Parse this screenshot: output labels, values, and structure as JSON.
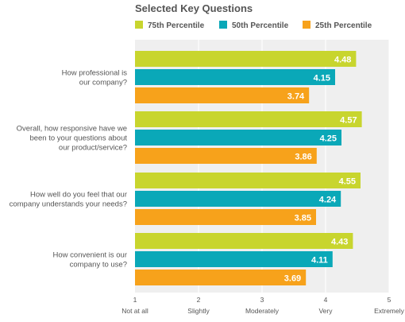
{
  "chart_data": {
    "type": "bar",
    "orientation": "horizontal",
    "title": "Selected Key Questions",
    "categories": [
      "How professional is our company?",
      "Overall, how responsive have we been to your questions about our product/service?",
      "How well do you feel that our company understands your needs?",
      "How convenient is our company to use?"
    ],
    "category_lines": [
      [
        "How professional is",
        "our company?"
      ],
      [
        "Overall, how responsive have we",
        "been to your questions about",
        "our product/service?"
      ],
      [
        "How well do you feel that our",
        "company understands your needs?"
      ],
      [
        "How convenient is our",
        "company to use?"
      ]
    ],
    "series": [
      {
        "name": "75th Percentile",
        "color": "#c8d52e",
        "values": [
          4.48,
          4.57,
          4.55,
          4.43
        ],
        "labels": [
          "4.48",
          "4.57",
          "4.55",
          "4.43"
        ]
      },
      {
        "name": "50th Percentile",
        "color": "#0aa8b8",
        "values": [
          4.15,
          4.25,
          4.24,
          4.11
        ],
        "labels": [
          "4.15",
          "4.25",
          "4.24",
          "4.11"
        ]
      },
      {
        "name": "25th Percentile",
        "color": "#f7a21b",
        "values": [
          3.74,
          3.86,
          3.85,
          3.69
        ],
        "labels": [
          "3.74",
          "3.86",
          "3.85",
          "3.69"
        ]
      }
    ],
    "xlim": [
      1,
      5
    ],
    "xticks": [
      {
        "value": 1,
        "number": "1",
        "label": "Not at all"
      },
      {
        "value": 2,
        "number": "2",
        "label": "Slightly"
      },
      {
        "value": 3,
        "number": "3",
        "label": "Moderately"
      },
      {
        "value": 4,
        "number": "4",
        "label": "Very"
      },
      {
        "value": 5,
        "number": "5",
        "label": "Extremely"
      }
    ],
    "legend": "top",
    "grid": true,
    "plot_background": "#efefef",
    "grid_color": "#ffffff"
  }
}
